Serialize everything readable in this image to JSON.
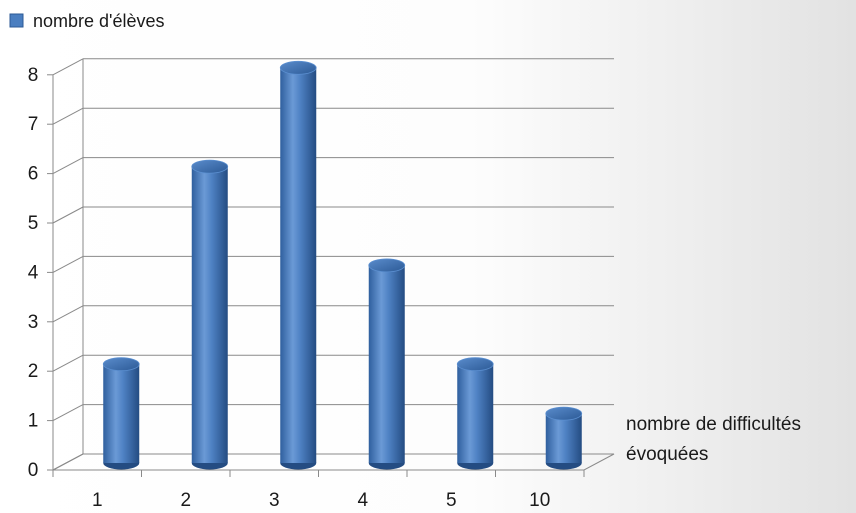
{
  "chart_data": {
    "type": "bar",
    "categories": [
      "1",
      "2",
      "3",
      "4",
      "5",
      "10"
    ],
    "series": [
      {
        "name": "nombre d'élèves",
        "values": [
          2,
          6,
          8,
          4,
          2,
          1
        ],
        "color": "#4a7ec0"
      }
    ],
    "xlabel": [
      "nombre de difficultés",
      "évoquées"
    ],
    "ylabel": "",
    "y_ticks": [
      "0",
      "1",
      "2",
      "3",
      "4",
      "5",
      "6",
      "7",
      "8"
    ],
    "ylim": [
      0,
      8
    ],
    "grid": true,
    "legend": "top-left",
    "style": "3d-cylinder"
  }
}
